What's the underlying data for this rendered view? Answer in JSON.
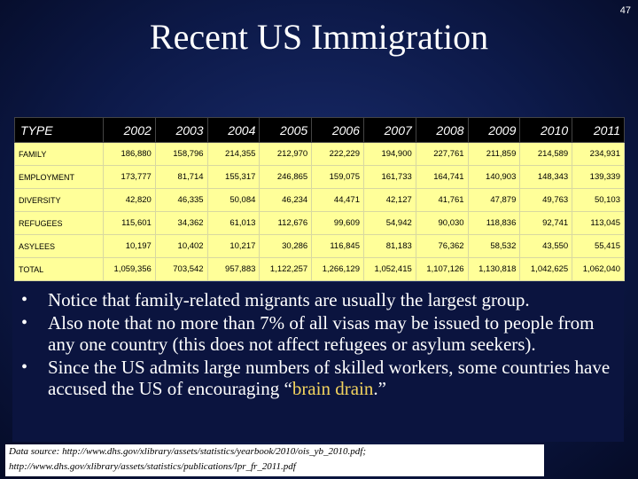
{
  "page_number": "47",
  "title": "Recent US Immigration",
  "table": {
    "headers": [
      "TYPE",
      "2002",
      "2003",
      "2004",
      "2005",
      "2006",
      "2007",
      "2008",
      "2009",
      "2010",
      "2011"
    ],
    "rows": [
      {
        "label": "FAMILY",
        "values": [
          "186,880",
          "158,796",
          "214,355",
          "212,970",
          "222,229",
          "194,900",
          "227,761",
          "211,859",
          "214,589",
          "234,931"
        ]
      },
      {
        "label": "EMPLOYMENT",
        "values": [
          "173,777",
          "81,714",
          "155,317",
          "246,865",
          "159,075",
          "161,733",
          "164,741",
          "140,903",
          "148,343",
          "139,339"
        ]
      },
      {
        "label": "DIVERSITY",
        "values": [
          "42,820",
          "46,335",
          "50,084",
          "46,234",
          "44,471",
          "42,127",
          "41,761",
          "47,879",
          "49,763",
          "50,103"
        ]
      },
      {
        "label": "REFUGEES",
        "values": [
          "115,601",
          "34,362",
          "61,013",
          "112,676",
          "99,609",
          "54,942",
          "90,030",
          "118,836",
          "92,741",
          "113,045"
        ]
      },
      {
        "label": "ASYLEES",
        "values": [
          "10,197",
          "10,402",
          "10,217",
          "30,286",
          "116,845",
          "81,183",
          "76,362",
          "58,532",
          "43,550",
          "55,415"
        ]
      },
      {
        "label": "TOTAL",
        "values": [
          "1,059,356",
          "703,542",
          "957,883",
          "1,122,257",
          "1,266,129",
          "1,052,415",
          "1,107,126",
          "1,130,818",
          "1,042,625",
          "1,062,040"
        ]
      }
    ]
  },
  "bullets": {
    "b1": "Notice that family-related migrants are usually the largest group.",
    "b2": "Also note that no more than 7% of all visas may be issued to people from any one country (this does not affect refugees or asylum seekers).",
    "b3_pre": "Since the US admits large numbers of skilled workers, some countries have accused the US of encouraging “",
    "b3_highlight": "brain drain",
    "b3_post": ".”"
  },
  "source": {
    "line1": "Data source: http://www.dhs.gov/xlibrary/assets/statistics/yearbook/2010/ois_yb_2010.pdf;",
    "line2": "http://www.dhs.gov/xlibrary/assets/statistics/publications/lpr_fr_2011.pdf"
  }
}
